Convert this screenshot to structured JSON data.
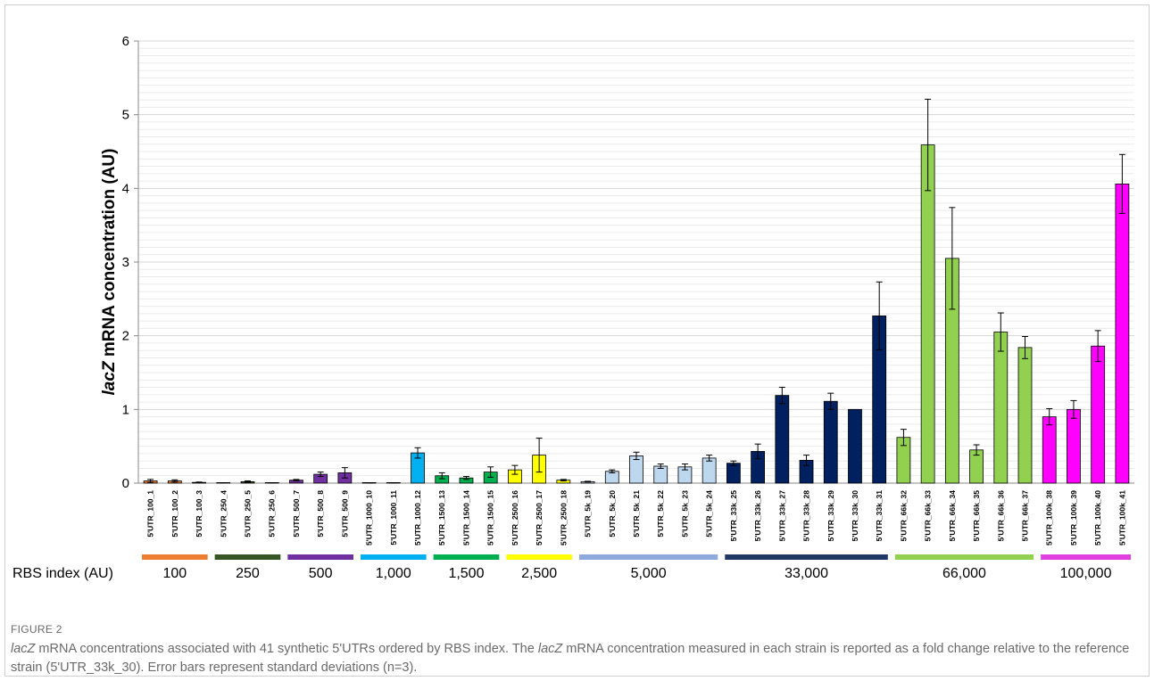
{
  "chart_data": {
    "type": "bar",
    "ylabel_italic": "lacZ",
    "ylabel_rest": " mRNA concentration (AU)",
    "ylim": [
      0,
      6
    ],
    "yticks": [
      "0",
      "1",
      "2",
      "3",
      "4",
      "5",
      "6"
    ],
    "minor_grid_step": 0.1,
    "categories": [
      "5'UTR_100_1",
      "5'UTR_100_2",
      "5'UTR_100_3",
      "5'UTR_250_4",
      "5'UTR_250_5",
      "5'UTR_250_6",
      "5'UTR_500_7",
      "5'UTR_500_8",
      "5'UTR_500_9",
      "5'UTR_1000_10",
      "5'UTR_1000_11",
      "5'UTR_1000_12",
      "5'UTR_1500_13",
      "5'UTR_1500_14",
      "5'UTR_1500_15",
      "5'UTR_2500_16",
      "5'UTR_2500_17",
      "5'UTR_2500_18",
      "5'UTR_5k_19",
      "5'UTR_5k_20",
      "5'UTR_5k_21",
      "5'UTR_5k_22",
      "5'UTR_5k_23",
      "5'UTR_5k_24",
      "5'UTR_33k_25",
      "5'UTR_33k_26",
      "5'UTR_33k_27",
      "5'UTR_33k_28",
      "5'UTR_33k_29",
      "5'UTR_33k_30",
      "5'UTR_33k_31",
      "5'UTR_66k_32",
      "5'UTR_66k_33",
      "5'UTR_66k_34",
      "5'UTR_66k_35",
      "5'UTR_66k_36",
      "5'UTR_66k_37",
      "5'UTR_100k_38",
      "5'UTR_100k_39",
      "5'UTR_100k_40",
      "5'UTR_100k_41"
    ],
    "values": [
      0.03,
      0.03,
      0.01,
      0.003,
      0.02,
      0.003,
      0.04,
      0.12,
      0.14,
      0.002,
      0.004,
      0.41,
      0.1,
      0.07,
      0.15,
      0.18,
      0.38,
      0.04,
      0.02,
      0.16,
      0.37,
      0.23,
      0.22,
      0.34,
      0.27,
      0.43,
      1.19,
      0.31,
      1.11,
      1.0,
      2.27,
      0.62,
      4.59,
      3.05,
      0.45,
      2.05,
      1.84,
      0.9,
      1.0,
      1.86,
      4.06
    ],
    "errors": [
      0.02,
      0.015,
      0.005,
      0.002,
      0.01,
      0.002,
      0.01,
      0.03,
      0.07,
      0.001,
      0.002,
      0.07,
      0.04,
      0.02,
      0.07,
      0.06,
      0.23,
      0.01,
      0.005,
      0.02,
      0.05,
      0.03,
      0.04,
      0.04,
      0.03,
      0.1,
      0.11,
      0.07,
      0.11,
      0.0,
      0.46,
      0.11,
      0.62,
      0.69,
      0.07,
      0.26,
      0.15,
      0.11,
      0.12,
      0.21,
      0.4
    ],
    "groups": [
      {
        "label": "100",
        "color": "#ED7D31",
        "count": 3
      },
      {
        "label": "250",
        "color": "#375623",
        "count": 3
      },
      {
        "label": "500",
        "color": "#7030A0",
        "count": 3
      },
      {
        "label": "1,000",
        "color": "#00B0F0",
        "count": 3
      },
      {
        "label": "1,500",
        "color": "#00B050",
        "count": 3
      },
      {
        "label": "2,500",
        "color": "#FFFF00",
        "count": 3
      },
      {
        "label": "5,000",
        "color": "#BDD7EE",
        "group_bar_color": "#8EA9DB",
        "count": 6
      },
      {
        "label": "33,000",
        "color": "#002060",
        "group_bar_color": "#1F3864",
        "count": 7
      },
      {
        "label": "66,000",
        "color": "#92D050",
        "count": 6
      },
      {
        "label": "100,000",
        "color": "#FF00FF",
        "group_bar_color": "#E040E0",
        "count": 4
      }
    ],
    "group_axis_label": "RBS index (AU)"
  },
  "figure_label": "FIGURE 2",
  "caption": {
    "p1_italic": "lacZ",
    "p1": " mRNA concentrations associated with 41 synthetic 5'UTRs ordered by RBS index. The ",
    "p2_italic": "lacZ",
    "p2": " mRNA concentration measured in each strain is reported as a fold change relative to the reference strain (5'UTR_33k_30). Error bars represent standard deviations (n=3)."
  }
}
